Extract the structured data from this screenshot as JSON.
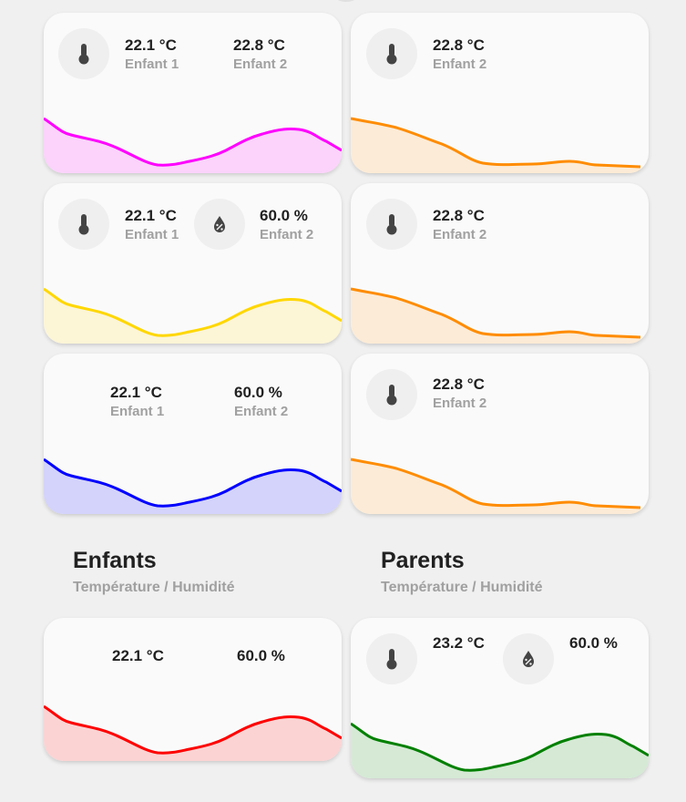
{
  "cards": [
    {
      "v1": "22.1 °C",
      "l1": "Enfant 1",
      "v2": "22.8 °C",
      "l2": "Enfant 2",
      "color": "#ff00ff",
      "fill": "#fbd3fb"
    },
    {
      "v1": "22.8 °C",
      "l1": "Enfant 2",
      "color": "#ff8c00",
      "fill": "#fcebd6"
    },
    {
      "v1": "22.1 °C",
      "l1": "Enfant 1",
      "v2": "60.0 %",
      "l2": "Enfant 2",
      "color": "#ffd700",
      "fill": "#fcf5d6"
    },
    {
      "v1": "22.8 °C",
      "l1": "Enfant 2",
      "color": "#ff8c00",
      "fill": "#fcebd6"
    },
    {
      "v1": "22.1 °C",
      "l1": "Enfant 1",
      "v2": "60.0 %",
      "l2": "Enfant 2",
      "color": "#0000ff",
      "fill": "#d3d3fb"
    },
    {
      "v1": "22.8 °C",
      "l1": "Enfant 2",
      "color": "#ff8c00",
      "fill": "#fcebd6"
    },
    {
      "v1": "22.1 °C",
      "v2": "60.0 %",
      "color": "#ff0000",
      "fill": "#fbd3d3"
    },
    {
      "v1": "23.2 °C",
      "v2": "60.0 %",
      "color": "#008000",
      "fill": "#d5e9d5"
    }
  ],
  "sections": {
    "left": {
      "title": "Enfants",
      "subtitle": "Température / Humidité"
    },
    "right": {
      "title": "Parents",
      "subtitle": "Température / Humidité"
    }
  }
}
